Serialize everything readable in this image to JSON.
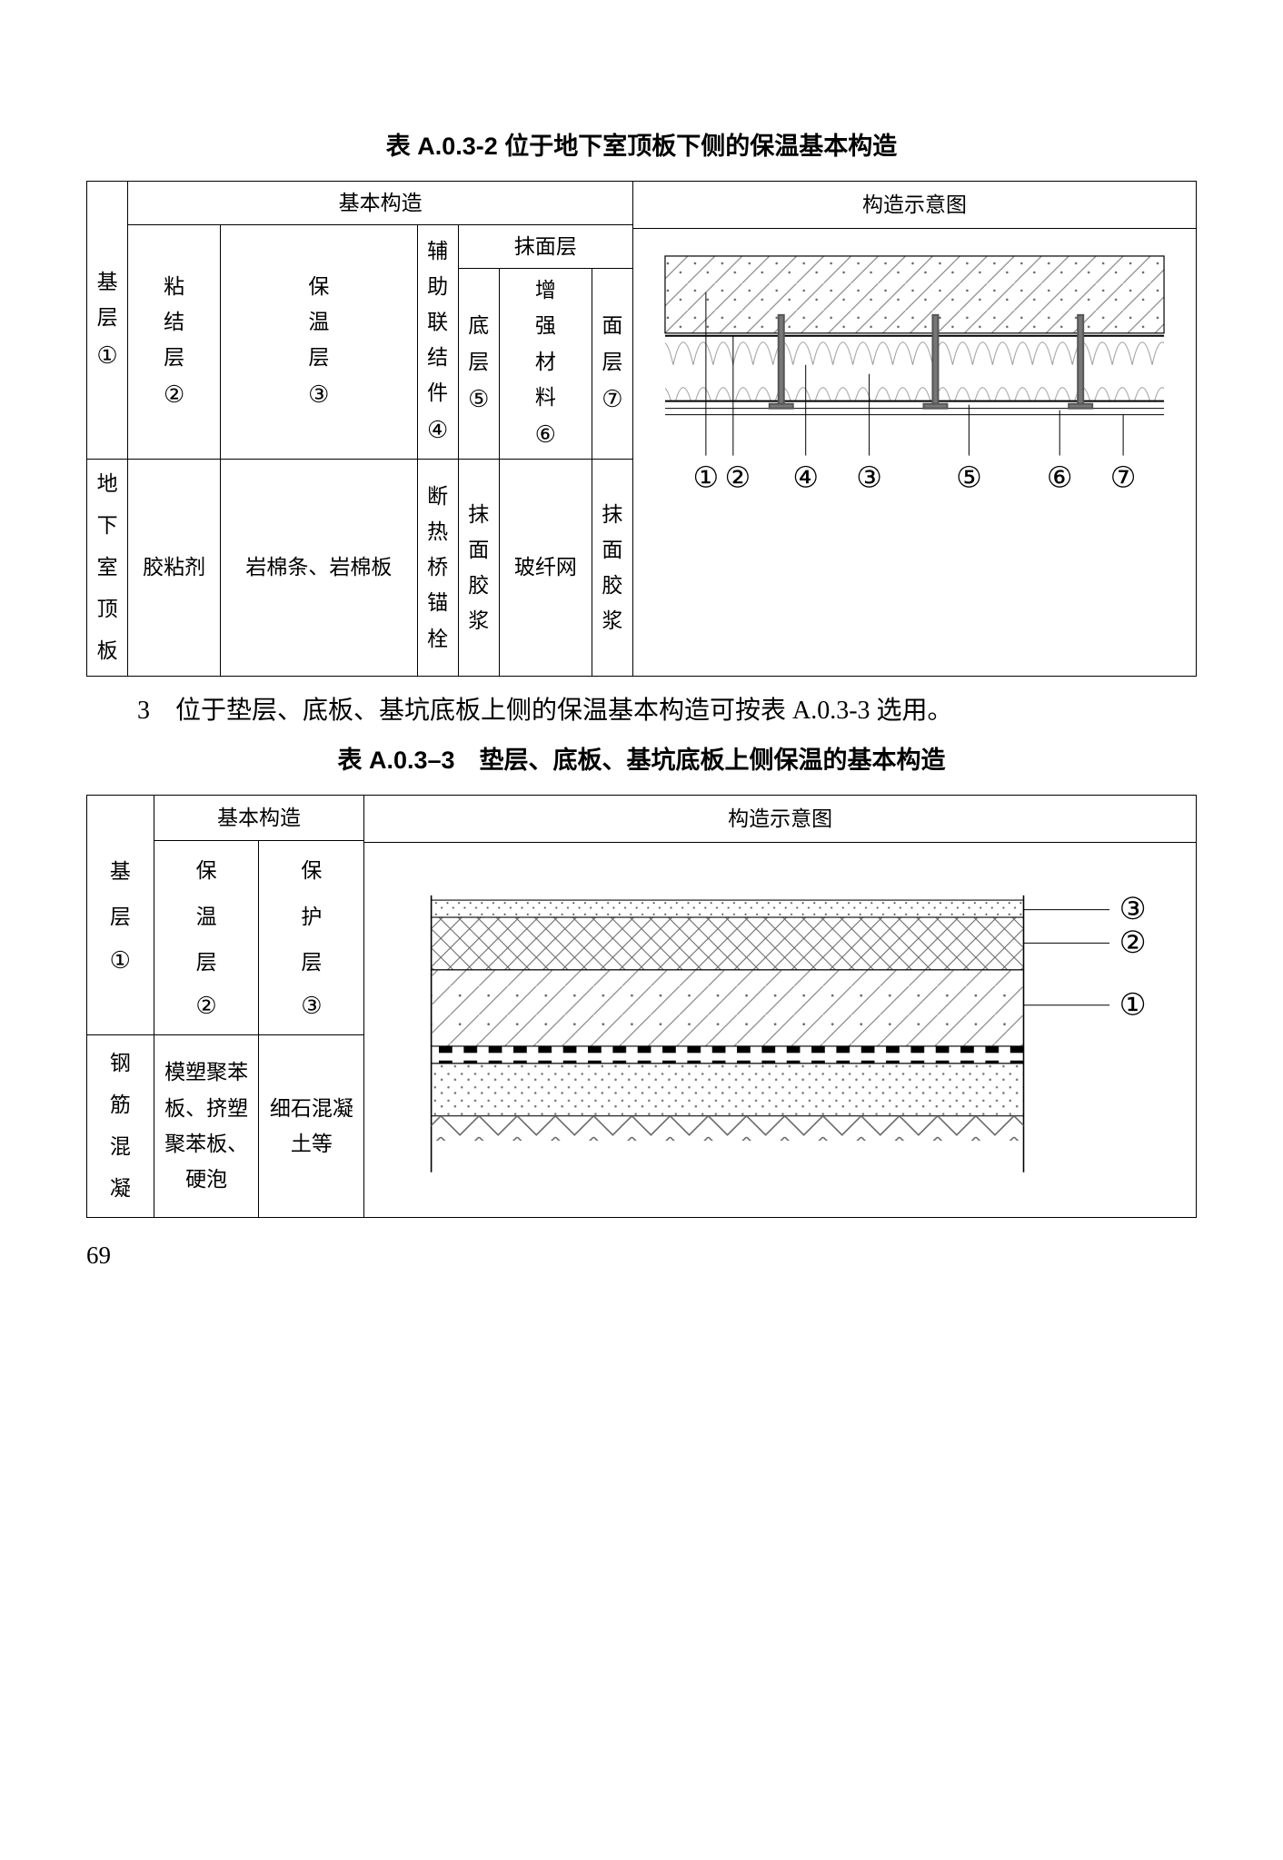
{
  "table1": {
    "caption": "表 A.0.3-2 位于地下室顶板下侧的保温基本构造",
    "header_basic": "基本构造",
    "header_diagram": "构造示意图",
    "header_plaster": "抹面层",
    "cols": {
      "c1": "基层",
      "c2": "粘结层",
      "c3": "保温层",
      "c4": "辅助联结件",
      "c5": "底层",
      "c6": "增强材料",
      "c7": "面层"
    },
    "nums": [
      "①",
      "②",
      "③",
      "④",
      "⑤",
      "⑥",
      "⑦"
    ],
    "row1": {
      "c1": "地下室顶板",
      "c2": "胶粘剂",
      "c3": "岩棉条、岩棉板",
      "c4": "断热桥锚栓",
      "c5": "抹面胶浆",
      "c6": "玻纤网",
      "c7": "抹面胶浆"
    },
    "diagram_labels": [
      "①",
      "②",
      "④",
      "③",
      "⑤",
      "⑥",
      "⑦"
    ]
  },
  "para1": "3　位于垫层、底板、基坑底板上侧的保温基本构造可按表 A.0.3-3 选用。",
  "table2": {
    "caption": "表 A.0.3–3　垫层、底板、基坑底板上侧保温的基本构造",
    "header_basic": "基本构造",
    "header_diagram": "构造示意图",
    "cols": {
      "c1": "基层",
      "c2": "保温层",
      "c3": "保护层"
    },
    "nums": [
      "①",
      "②",
      "③"
    ],
    "row1": {
      "c1": "钢筋混凝",
      "c2": "模塑聚苯板、挤塑聚苯板、硬泡",
      "c3": "细石混凝土等"
    },
    "diagram_labels": [
      "③",
      "②",
      "①"
    ]
  },
  "pagenum": "69",
  "colors": {
    "border": "#000000",
    "bg": "#ffffff",
    "hatch": "#777777",
    "layer3": "#d8d8d8",
    "layer2": "#888888",
    "layer1": "#bbbbbb"
  }
}
